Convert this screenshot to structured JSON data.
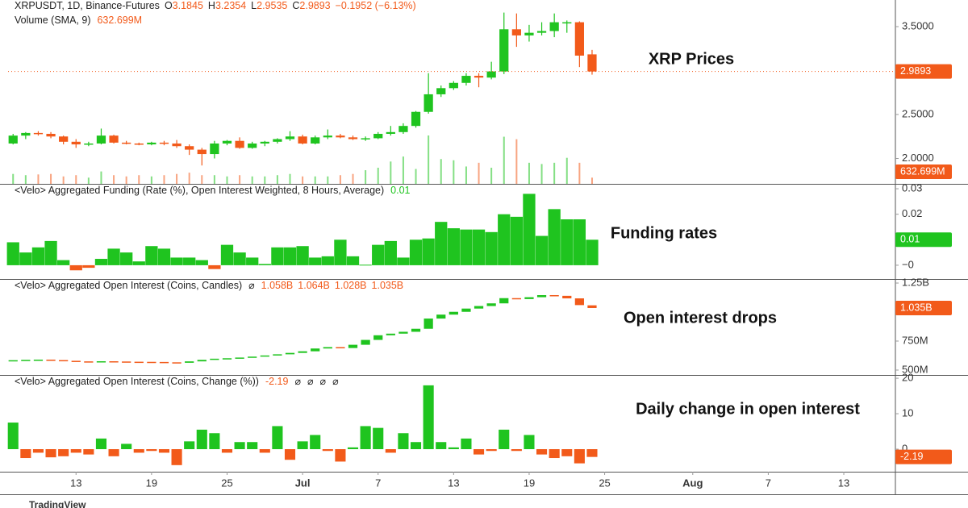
{
  "chart_data": [
    {
      "type": "candlestick",
      "title": "XRPUSDT, 1D, Binance-Futures",
      "ohlc_letters": [
        "O",
        "H",
        "L",
        "C"
      ],
      "change": "−0.1952 (−6.13%)",
      "annotation": "XRP Prices",
      "up_color": "#1fc41f",
      "down_color": "#f25a1a",
      "open": [
        2.17,
        2.26,
        2.29,
        2.28,
        2.25,
        2.19,
        2.16,
        2.17,
        2.26,
        2.18,
        2.17,
        2.16,
        2.18,
        2.17,
        2.14,
        2.1,
        2.05,
        2.17,
        2.2,
        2.12,
        2.17,
        2.19,
        2.22,
        2.25,
        2.17,
        2.24,
        2.26,
        2.24,
        2.22,
        2.23,
        2.28,
        2.3,
        2.37,
        2.53,
        2.73,
        2.8,
        2.86,
        2.94,
        2.92,
        2.99,
        3.47,
        3.4,
        3.43,
        3.45,
        3.54,
        3.55,
        3.1845
      ],
      "high": [
        2.28,
        2.3,
        2.31,
        2.3,
        2.26,
        2.22,
        2.19,
        2.34,
        2.27,
        2.2,
        2.18,
        2.19,
        2.2,
        2.21,
        2.16,
        2.12,
        2.2,
        2.21,
        2.24,
        2.19,
        2.2,
        2.23,
        2.31,
        2.27,
        2.26,
        2.33,
        2.28,
        2.26,
        2.25,
        2.3,
        2.37,
        2.4,
        2.54,
        2.97,
        2.83,
        2.88,
        2.97,
        2.97,
        3.1,
        3.66,
        3.65,
        3.52,
        3.55,
        3.65,
        3.57,
        3.56,
        3.2354
      ],
      "low": [
        2.16,
        2.22,
        2.26,
        2.23,
        2.16,
        2.12,
        2.14,
        2.16,
        2.17,
        2.16,
        2.15,
        2.15,
        2.15,
        2.12,
        2.04,
        1.92,
        2.0,
        2.15,
        2.11,
        2.11,
        2.14,
        2.17,
        2.2,
        2.16,
        2.16,
        2.22,
        2.23,
        2.21,
        2.2,
        2.22,
        2.26,
        2.28,
        2.35,
        2.51,
        2.7,
        2.78,
        2.83,
        2.81,
        2.9,
        2.96,
        3.27,
        3.33,
        3.4,
        3.38,
        3.43,
        3.04,
        2.9535
      ],
      "close": [
        2.26,
        2.29,
        2.28,
        2.25,
        2.19,
        2.16,
        2.17,
        2.26,
        2.18,
        2.17,
        2.16,
        2.18,
        2.17,
        2.14,
        2.1,
        2.05,
        2.17,
        2.2,
        2.12,
        2.17,
        2.19,
        2.22,
        2.25,
        2.17,
        2.24,
        2.26,
        2.24,
        2.22,
        2.23,
        2.28,
        2.3,
        2.37,
        2.53,
        2.73,
        2.8,
        2.86,
        2.94,
        2.92,
        2.99,
        3.47,
        3.4,
        3.43,
        3.45,
        3.55,
        3.55,
        3.17,
        2.9893
      ],
      "volume": {
        "title": "Volume (SMA, 9)",
        "sma": "632.699M",
        "values": [
          400,
          350,
          380,
          400,
          300,
          350,
          250,
          500,
          350,
          300,
          350,
          300,
          350,
          400,
          450,
          350,
          350,
          300,
          350,
          300,
          300,
          350,
          400,
          300,
          300,
          300,
          350,
          400,
          550,
          650,
          900,
          1100,
          600,
          1950,
          1000,
          950,
          700,
          850,
          650,
          1900,
          1800,
          850,
          800,
          850,
          1050,
          850,
          250
        ]
      },
      "ylim": [
        1.711,
        3.803
      ],
      "yticks": [
        {
          "value": 3.5,
          "label": "3.5000"
        },
        {
          "value": 2.5,
          "label": "2.5000"
        },
        {
          "value": 2,
          "label": "2.0000"
        }
      ]
    },
    {
      "type": "bar",
      "title": "<Velo> Aggregated Funding (Rate (%), Open Interest Weighted, 8 Hours, Average)",
      "annotation": "Funding rates",
      "up_color": "#1fc41f",
      "down_color": "#f25a1a",
      "values": [
        0.009,
        0.005,
        0.007,
        0.0095,
        0.002,
        -0.002,
        -0.001,
        0.0025,
        0.0065,
        0.005,
        0.0015,
        0.0075,
        0.0065,
        0.003,
        0.003,
        0.002,
        -0.0015,
        0.008,
        0.005,
        0.003,
        0.0005,
        0.007,
        0.007,
        0.0075,
        0.003,
        0.0035,
        0.01,
        0.0035,
        0.0002,
        0.008,
        0.0095,
        0.003,
        0.01,
        0.0105,
        0.017,
        0.0145,
        0.014,
        0.014,
        0.013,
        0.02,
        0.019,
        0.028,
        0.0115,
        0.022,
        0.018,
        0.018,
        0.01
      ],
      "ylim": [
        -0.0054,
        0.0316
      ],
      "yticks": [
        0.03,
        0.02,
        {
          "value": 0,
          "label": "−0"
        }
      ]
    },
    {
      "type": "candlestick",
      "title": "<Velo> Aggregated Open Interest (Coins, Candles)",
      "icon": "⌀",
      "last_labels": [
        "1.058B",
        "1.064B",
        "1.028B",
        "1.035B"
      ],
      "annotation": "Open interest drops",
      "up_color": "#1fc41f",
      "down_color": "#f25a1a",
      "open": [
        580,
        585,
        588,
        590,
        586,
        580,
        575,
        572,
        576,
        574,
        572,
        571,
        570,
        567,
        563,
        575,
        588,
        598,
        602,
        608,
        616,
        626,
        636,
        648,
        662,
        686,
        698,
        690,
        718,
        760,
        800,
        814,
        830,
        856,
        944,
        978,
        1002,
        1030,
        1052,
        1075,
        1120,
        1112,
        1128,
        1146,
        1140,
        1118,
        1058
      ],
      "close": [
        585,
        588,
        590,
        586,
        580,
        575,
        572,
        576,
        574,
        572,
        571,
        570,
        567,
        563,
        575,
        588,
        598,
        602,
        608,
        616,
        626,
        636,
        648,
        662,
        686,
        698,
        690,
        718,
        760,
        800,
        814,
        830,
        856,
        944,
        978,
        1002,
        1030,
        1052,
        1075,
        1120,
        1112,
        1128,
        1146,
        1140,
        1118,
        1060,
        1035
      ],
      "ylim": [
        458,
        1278
      ],
      "yticks": [
        {
          "value": 1250,
          "label": "1.25B"
        },
        {
          "value": 750,
          "label": "750M"
        },
        {
          "value": 500,
          "label": "500M"
        }
      ]
    },
    {
      "type": "bar",
      "title": "<Velo> Aggregated Open Interest (Coins, Change (%))",
      "icons": [
        "⌀",
        "⌀",
        "⌀",
        "⌀"
      ],
      "annotation": "Daily change in open interest",
      "up_color": "#1fc41f",
      "down_color": "#f25a1a",
      "values": [
        7.5,
        -2.5,
        -1,
        -2.3,
        -2,
        -1,
        -1.5,
        3,
        -2,
        1.5,
        -1,
        -0.5,
        -1,
        -4.5,
        2.2,
        5.5,
        4.5,
        -1,
        2,
        2,
        -1,
        6.5,
        -3,
        2.2,
        4,
        -0.5,
        -3.5,
        0.5,
        6.5,
        6,
        -1,
        4.5,
        2,
        18,
        2,
        0.5,
        3,
        -1.5,
        -0.5,
        5.5,
        -0.5,
        4,
        -1.5,
        -2.5,
        -2,
        -4,
        -2.19
      ],
      "ylim": [
        -6.36,
        20.7
      ],
      "yticks": [
        20,
        10,
        0
      ],
      "xlim": [
        -0.4,
        70.1
      ],
      "xticks": [
        {
          "value": 5,
          "label": "13"
        },
        {
          "value": 11,
          "label": "19"
        },
        {
          "value": 17,
          "label": "25"
        },
        {
          "value": 23,
          "label": "Jul"
        },
        {
          "value": 29,
          "label": "7"
        },
        {
          "value": 35,
          "label": "13"
        },
        {
          "value": 41,
          "label": "19"
        },
        {
          "value": 47,
          "label": "25"
        },
        {
          "value": 54,
          "label": "Aug"
        },
        {
          "value": 60,
          "label": "7"
        },
        {
          "value": 66,
          "label": "13"
        }
      ]
    }
  ],
  "watermark": "TradingView"
}
